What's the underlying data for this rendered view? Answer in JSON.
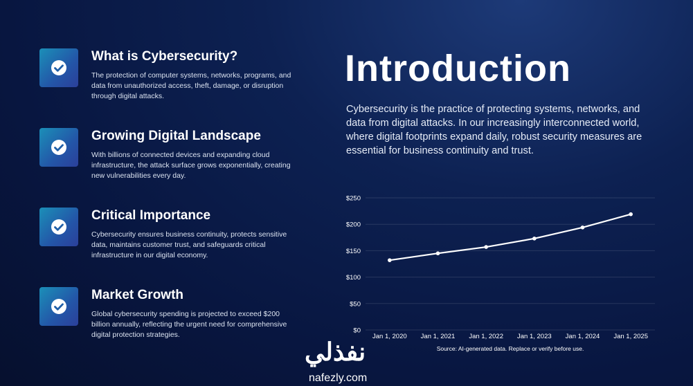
{
  "cards": [
    {
      "title": "What is Cybersecurity?",
      "text": "The protection of computer systems, networks, programs, and data from unauthorized access, theft, damage, or disruption through digital attacks."
    },
    {
      "title": "Growing Digital Landscape",
      "text": "With billions of connected devices and expanding cloud infrastructure, the attack surface grows exponentially, creating new vulnerabilities every day."
    },
    {
      "title": "Critical Importance",
      "text": "Cybersecurity ensures business continuity, protects sensitive data, maintains customer trust, and safeguards critical infrastructure in our digital economy."
    },
    {
      "title": "Market Growth",
      "text": "Global cybersecurity spending is projected to exceed $200 billion annually, reflecting the urgent need for comprehensive digital protection strategies."
    }
  ],
  "intro": {
    "title": "Introduction",
    "text": "Cybersecurity is the practice of protecting systems, networks, and data from digital attacks. In our increasingly interconnected world, where digital footprints expand daily, robust security measures are essential for business continuity and trust."
  },
  "chart_data": {
    "type": "line",
    "categories": [
      "Jan 1, 2020",
      "Jan 1, 2021",
      "Jan 1, 2022",
      "Jan 1, 2023",
      "Jan 1, 2024",
      "Jan 1, 2025"
    ],
    "values": [
      132,
      145,
      157,
      173,
      194,
      219
    ],
    "color": "#ffffff",
    "ylim": [
      0,
      250
    ],
    "yticks": [
      {
        "value": 0,
        "label": "$0"
      },
      {
        "value": 50,
        "label": "$50"
      },
      {
        "value": 100,
        "label": "$100"
      },
      {
        "value": 150,
        "label": "$150"
      },
      {
        "value": 200,
        "label": "$200"
      },
      {
        "value": 250,
        "label": "$250"
      }
    ],
    "grid": true,
    "note": "Source: AI-generated data. Replace or verify before use."
  },
  "watermark": {
    "arabic": "نفذلي",
    "site": "nafezly.com"
  }
}
